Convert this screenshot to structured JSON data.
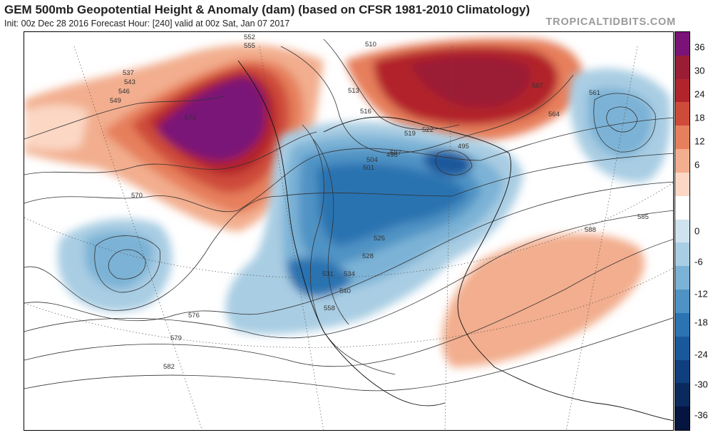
{
  "header": {
    "title": "GEM 500mb Geopotential Height & Anomaly (dam) (based on CFSR 1981-2010 Climatology)",
    "subtitle": "Init: 00z Dec 28 2016   Forecast Hour: [240]   valid at 00z Sat, Jan 07 2017",
    "brand": "TROPICALTIDBITS.COM"
  },
  "colorbar": {
    "colors": [
      "#7a1277",
      "#9b1d35",
      "#b2242c",
      "#ce4b3a",
      "#e67f5c",
      "#f2ae8e",
      "#fbd7c4",
      "#ffffff",
      "#cfe3ef",
      "#a9cde3",
      "#7bb2d6",
      "#4f93c4",
      "#2c73b1",
      "#1a589c",
      "#0f3f7e",
      "#0a2a5d",
      "#051540"
    ],
    "labels": [
      "36",
      "30",
      "24",
      "18",
      "12",
      "6",
      "0",
      "-6",
      "-12",
      "-18",
      "-24",
      "-30",
      "-36"
    ]
  },
  "contour_labels": [
    {
      "text": "510"
    },
    {
      "text": "537"
    },
    {
      "text": "543"
    },
    {
      "text": "546"
    },
    {
      "text": "549"
    },
    {
      "text": "552"
    },
    {
      "text": "555"
    },
    {
      "text": "558"
    },
    {
      "text": "561"
    },
    {
      "text": "564"
    },
    {
      "text": "567"
    },
    {
      "text": "570"
    },
    {
      "text": "573"
    },
    {
      "text": "576"
    },
    {
      "text": "579"
    },
    {
      "text": "582"
    },
    {
      "text": "585"
    },
    {
      "text": "588"
    },
    {
      "text": "495"
    },
    {
      "text": "498"
    },
    {
      "text": "501"
    },
    {
      "text": "504"
    },
    {
      "text": "507"
    },
    {
      "text": "513"
    },
    {
      "text": "516"
    },
    {
      "text": "519"
    },
    {
      "text": "522"
    },
    {
      "text": "525"
    },
    {
      "text": "528"
    },
    {
      "text": "531"
    },
    {
      "text": "534"
    },
    {
      "text": "540"
    }
  ]
}
